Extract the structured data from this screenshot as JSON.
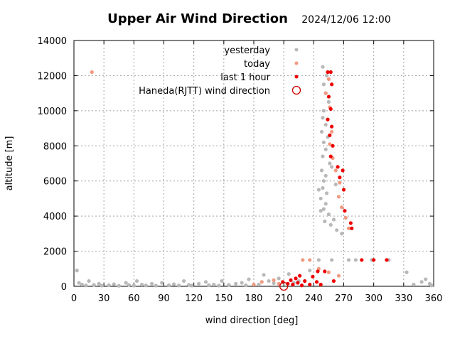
{
  "chart_data": {
    "type": "scatter",
    "title": "Upper Air Wind Direction",
    "subtitle": "2024/12/06 12:00",
    "xlabel": "wind direction  [deg]",
    "ylabel": "altitude  [m]",
    "xlim": [
      0,
      360
    ],
    "ylim": [
      0,
      14000
    ],
    "xticks": [
      "0",
      "30",
      "60",
      "90",
      "120",
      "150",
      "180",
      "210",
      "240",
      "270",
      "300",
      "330",
      "360"
    ],
    "yticks": [
      "0",
      "2000",
      "4000",
      "6000",
      "8000",
      "10000",
      "12000",
      "14000"
    ],
    "grid": true,
    "legend_position": "top-right",
    "colors": {
      "yesterday": "#b8b8b8",
      "today": "#f09a80",
      "last_hour": "#ee0000",
      "haneda": "#cc0000"
    },
    "series": [
      {
        "name": "yesterday",
        "marker": "dot",
        "points": [
          [
            3,
            900
          ],
          [
            5,
            200
          ],
          [
            8,
            100
          ],
          [
            12,
            50
          ],
          [
            15,
            300
          ],
          [
            20,
            80
          ],
          [
            25,
            150
          ],
          [
            28,
            40
          ],
          [
            35,
            60
          ],
          [
            40,
            120
          ],
          [
            45,
            30
          ],
          [
            52,
            200
          ],
          [
            55,
            80
          ],
          [
            60,
            40
          ],
          [
            63,
            300
          ],
          [
            68,
            100
          ],
          [
            72,
            50
          ],
          [
            78,
            150
          ],
          [
            82,
            40
          ],
          [
            88,
            200
          ],
          [
            95,
            60
          ],
          [
            100,
            120
          ],
          [
            105,
            50
          ],
          [
            110,
            300
          ],
          [
            115,
            80
          ],
          [
            118,
            40
          ],
          [
            125,
            150
          ],
          [
            132,
            250
          ],
          [
            135,
            60
          ],
          [
            140,
            100
          ],
          [
            145,
            40
          ],
          [
            148,
            300
          ],
          [
            155,
            80
          ],
          [
            162,
            150
          ],
          [
            168,
            200
          ],
          [
            172,
            60
          ],
          [
            175,
            400
          ],
          [
            185,
            100
          ],
          [
            190,
            650
          ],
          [
            195,
            300
          ],
          [
            200,
            180
          ],
          [
            205,
            450
          ],
          [
            215,
            700
          ],
          [
            220,
            200
          ],
          [
            225,
            300
          ],
          [
            245,
            1500
          ],
          [
            258,
            1500
          ],
          [
            275,
            1500
          ],
          [
            282,
            1500
          ],
          [
            298,
            1500
          ],
          [
            315,
            1500
          ],
          [
            333,
            800
          ],
          [
            340,
            100
          ],
          [
            348,
            250
          ],
          [
            352,
            400
          ],
          [
            356,
            150
          ],
          [
            358,
            50
          ],
          [
            236,
            900
          ],
          [
            249,
            12500
          ],
          [
            253,
            12000
          ],
          [
            250,
            11500
          ],
          [
            252,
            11000
          ],
          [
            255,
            10500
          ],
          [
            250,
            10000
          ],
          [
            249,
            9600
          ],
          [
            252,
            9200
          ],
          [
            248,
            8800
          ],
          [
            254,
            8500
          ],
          [
            250,
            8200
          ],
          [
            252,
            7800
          ],
          [
            249,
            7400
          ],
          [
            256,
            7000
          ],
          [
            248,
            6600
          ],
          [
            252,
            6300
          ],
          [
            250,
            6000
          ],
          [
            249,
            5600
          ],
          [
            253,
            5300
          ],
          [
            247,
            5000
          ],
          [
            252,
            4700
          ],
          [
            250,
            4400
          ],
          [
            255,
            4100
          ],
          [
            260,
            3800
          ],
          [
            257,
            3500
          ],
          [
            263,
            3200
          ],
          [
            268,
            3000
          ],
          [
            245,
            5500
          ],
          [
            247,
            4300
          ],
          [
            262,
            5800
          ],
          [
            258,
            6800
          ],
          [
            251,
            3700
          ]
        ]
      },
      {
        "name": "today",
        "marker": "dot",
        "points": [
          [
            18,
            12200
          ],
          [
            229,
            1500
          ],
          [
            236,
            1500
          ],
          [
            245,
            1000
          ],
          [
            200,
            350
          ],
          [
            205,
            150
          ],
          [
            180,
            100
          ],
          [
            188,
            250
          ],
          [
            255,
            800
          ],
          [
            265,
            600
          ],
          [
            255,
            11800
          ],
          [
            252,
            11000
          ],
          [
            256,
            10200
          ],
          [
            254,
            9500
          ],
          [
            258,
            8800
          ],
          [
            256,
            8100
          ],
          [
            259,
            7300
          ],
          [
            262,
            6600
          ],
          [
            266,
            5900
          ],
          [
            265,
            5100
          ],
          [
            268,
            4500
          ],
          [
            272,
            3900
          ],
          [
            275,
            3300
          ]
        ]
      },
      {
        "name": "last 1 hour",
        "marker": "dot",
        "points": [
          [
            254,
            12200
          ],
          [
            257,
            12200
          ],
          [
            258,
            11500
          ],
          [
            255,
            10800
          ],
          [
            257,
            10100
          ],
          [
            254,
            9500
          ],
          [
            258,
            9100
          ],
          [
            256,
            8600
          ],
          [
            259,
            8000
          ],
          [
            257,
            7400
          ],
          [
            264,
            6800
          ],
          [
            269,
            6600
          ],
          [
            266,
            6200
          ],
          [
            270,
            5500
          ],
          [
            271,
            4300
          ],
          [
            277,
            3600
          ],
          [
            278,
            3300
          ],
          [
            209,
            250
          ],
          [
            214,
            150
          ],
          [
            217,
            350
          ],
          [
            219,
            100
          ],
          [
            222,
            450
          ],
          [
            224,
            200
          ],
          [
            226,
            600
          ],
          [
            228,
            50
          ],
          [
            231,
            300
          ],
          [
            236,
            100
          ],
          [
            239,
            550
          ],
          [
            243,
            250
          ],
          [
            247,
            100
          ],
          [
            251,
            850
          ],
          [
            244,
            850
          ],
          [
            288,
            1500
          ],
          [
            300,
            1500
          ],
          [
            313,
            1500
          ],
          [
            260,
            300
          ]
        ]
      }
    ],
    "haneda": {
      "name": "Haneda(RJTT) wind direction",
      "marker": "circle",
      "x": 210,
      "y": 0
    }
  }
}
